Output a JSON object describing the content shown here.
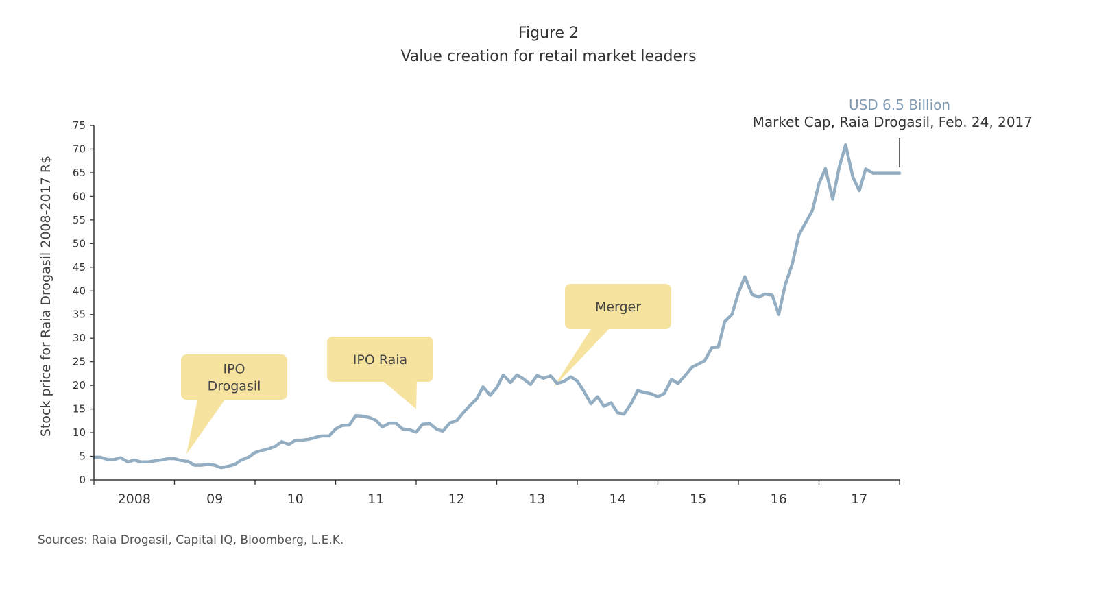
{
  "figure": {
    "label": "Figure 2",
    "title": "Value creation for retail market leaders",
    "source": "Sources: Raia Drogasil, Capital IQ, Bloomberg, L.E.K."
  },
  "colors": {
    "line": "#93aec2",
    "callout": "#f7e3a0",
    "axis": "#333333",
    "annotation_value": "#7f9ab3"
  },
  "chart_data": {
    "type": "line",
    "title": "Value creation for retail market leaders",
    "ylabel": "Stock price for Raia Drogasil 2008-2017 R$",
    "xlabel": "",
    "ylim": [
      0,
      75
    ],
    "yticks": [
      0,
      5,
      10,
      15,
      20,
      25,
      30,
      35,
      40,
      45,
      50,
      55,
      60,
      65,
      70,
      75
    ],
    "xlim": [
      2008,
      2018
    ],
    "xtick_labels": [
      "2008",
      "09",
      "10",
      "11",
      "12",
      "13",
      "14",
      "15",
      "16",
      "17"
    ],
    "grid": false,
    "x": [
      2008.0,
      2008.08,
      2008.17,
      2008.25,
      2008.33,
      2008.42,
      2008.5,
      2008.58,
      2008.67,
      2008.75,
      2008.83,
      2008.92,
      2009.0,
      2009.08,
      2009.17,
      2009.25,
      2009.33,
      2009.42,
      2009.5,
      2009.58,
      2009.67,
      2009.75,
      2009.83,
      2009.92,
      2010.0,
      2010.08,
      2010.17,
      2010.25,
      2010.33,
      2010.42,
      2010.5,
      2010.58,
      2010.67,
      2010.75,
      2010.83,
      2010.92,
      2011.0,
      2011.08,
      2011.17,
      2011.25,
      2011.33,
      2011.42,
      2011.5,
      2011.58,
      2011.67,
      2011.75,
      2011.83,
      2011.92,
      2012.0,
      2012.08,
      2012.17,
      2012.25,
      2012.33,
      2012.42,
      2012.5,
      2012.58,
      2012.67,
      2012.75,
      2012.83,
      2012.92,
      2013.0,
      2013.08,
      2013.17,
      2013.25,
      2013.33,
      2013.42,
      2013.5,
      2013.58,
      2013.67,
      2013.75,
      2013.83,
      2013.92,
      2014.0,
      2014.08,
      2014.17,
      2014.25,
      2014.33,
      2014.42,
      2014.5,
      2014.58,
      2014.67,
      2014.75,
      2014.83,
      2014.92,
      2015.0,
      2015.08,
      2015.17,
      2015.25,
      2015.33,
      2015.42,
      2015.5,
      2015.58,
      2015.67,
      2015.75,
      2015.83,
      2015.92,
      2016.0,
      2016.08,
      2016.17,
      2016.25,
      2016.33,
      2016.42,
      2016.5,
      2016.58,
      2016.67,
      2016.75,
      2016.83,
      2016.92,
      2017.0,
      2017.08,
      2017.17,
      2017.25,
      2017.33,
      2017.42,
      2017.5,
      2017.58,
      2017.67,
      2017.75,
      2017.83,
      2017.92,
      2018.0
    ],
    "series": [
      {
        "values": [
          4.8,
          4.8,
          4.3,
          4.3,
          4.7,
          3.8,
          4.2,
          3.8,
          3.8,
          4.0,
          4.2,
          4.5,
          4.5,
          4.1,
          3.9,
          3.1,
          3.1,
          3.3,
          3.1,
          2.6,
          2.9,
          3.3,
          4.2,
          4.8,
          5.8,
          6.2,
          6.6,
          7.1,
          8.1,
          7.5,
          8.4,
          8.4,
          8.6,
          9.0,
          9.3,
          9.3,
          10.8,
          11.5,
          11.6,
          13.6,
          13.5,
          13.2,
          12.6,
          11.2,
          12.0,
          12.0,
          10.8,
          10.6,
          10.1,
          11.8,
          11.9,
          10.8,
          10.3,
          12.1,
          12.5,
          14.1,
          15.8,
          17.1,
          19.7,
          17.9,
          19.5,
          22.2,
          20.6,
          22.2,
          21.4,
          20.2,
          22.1,
          21.5,
          22.0,
          20.4,
          20.8,
          21.8,
          20.9,
          18.8,
          16.1,
          17.6,
          15.6,
          16.3,
          14.2,
          13.9,
          16.2,
          18.9,
          18.5,
          18.2,
          17.6,
          18.3,
          21.3,
          20.4,
          21.9,
          23.8,
          24.5,
          25.2,
          28.0,
          28.1,
          33.5,
          35.0,
          39.6,
          43.0,
          39.2,
          38.7,
          39.3,
          39.1,
          35.0,
          41.2,
          45.8,
          51.8,
          54.3,
          57.1,
          62.7,
          65.9,
          59.4,
          66.1,
          70.9,
          64.1,
          61.2,
          65.8,
          64.9,
          64.9,
          64.9,
          64.9,
          64.9
        ]
      }
    ],
    "annotations": [
      {
        "text_lines": [
          "IPO",
          "Drogasil"
        ],
        "target_x": 2009.15,
        "target_y": 5.5
      },
      {
        "text_lines": [
          "IPO Raia"
        ],
        "target_x": 2012.0,
        "target_y": 15.0
      },
      {
        "text_lines": [
          "Merger"
        ],
        "target_x": 2013.7,
        "target_y": 19.5
      }
    ],
    "endpoint_note": {
      "value": "USD 6.5 Billion",
      "description": "Market Cap, Raia Drogasil, Feb. 24, 2017"
    }
  }
}
